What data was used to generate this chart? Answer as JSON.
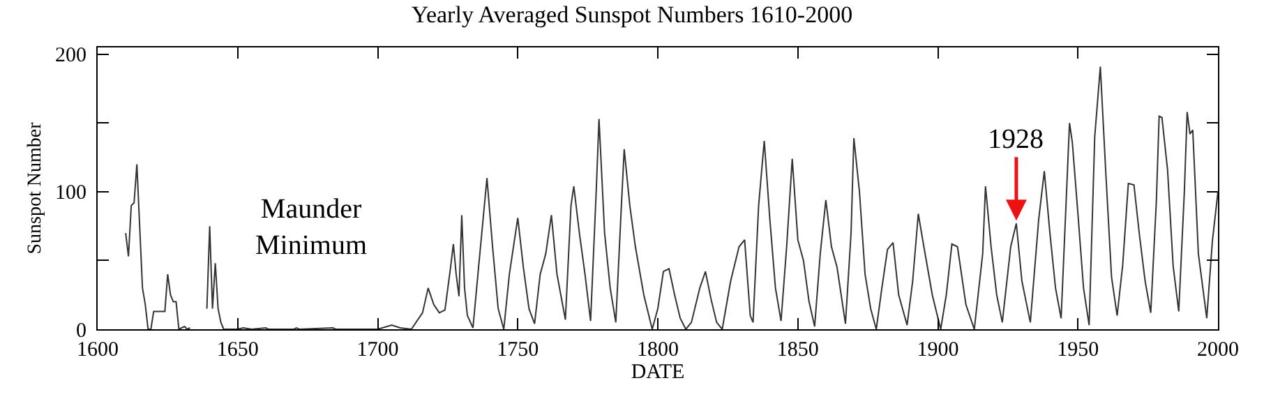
{
  "chart_data": {
    "type": "line",
    "title": "Yearly Averaged Sunspot Numbers 1610-2000",
    "xlabel": "DATE",
    "ylabel": "Sunspot Number",
    "x": [
      1610,
      1611,
      1612,
      1613,
      1614,
      1615,
      1616,
      1617,
      1618,
      1619,
      1620,
      1624,
      1625,
      1626,
      1627,
      1628,
      1629,
      1631,
      1632,
      1633,
      1635,
      1639,
      1640,
      1641,
      1642,
      1643,
      1644,
      1645,
      1650,
      1652,
      1655,
      1660,
      1661,
      1670,
      1671,
      1672,
      1684,
      1685,
      1700,
      1705,
      1708,
      1712,
      1716,
      1718,
      1720,
      1722,
      1724,
      1726,
      1727,
      1728,
      1729,
      1730,
      1731,
      1732,
      1734,
      1736,
      1739,
      1741,
      1743,
      1745,
      1747,
      1750,
      1752,
      1754,
      1756,
      1758,
      1760,
      1762,
      1764,
      1767,
      1769,
      1770,
      1772,
      1774,
      1776,
      1778,
      1779,
      1781,
      1783,
      1785,
      1787,
      1788,
      1790,
      1792,
      1795,
      1798,
      1800,
      1802,
      1804,
      1806,
      1808,
      1810,
      1812,
      1815,
      1817,
      1819,
      1821,
      1823,
      1826,
      1829,
      1831,
      1833,
      1834,
      1836,
      1838,
      1840,
      1842,
      1844,
      1846,
      1848,
      1850,
      1852,
      1854,
      1856,
      1858,
      1860,
      1862,
      1864,
      1867,
      1869,
      1870,
      1872,
      1874,
      1876,
      1878,
      1880,
      1882,
      1884,
      1886,
      1889,
      1891,
      1893,
      1895,
      1898,
      1901,
      1903,
      1905,
      1907,
      1910,
      1913,
      1916,
      1917,
      1919,
      1921,
      1923,
      1926,
      1928,
      1930,
      1933,
      1936,
      1938,
      1940,
      1942,
      1944,
      1947,
      1948,
      1950,
      1952,
      1954,
      1956,
      1958,
      1960,
      1962,
      1964,
      1966,
      1968,
      1970,
      1972,
      1974,
      1976,
      1978,
      1979,
      1980,
      1982,
      1984,
      1986,
      1988,
      1989,
      1990,
      1991,
      1993,
      1996,
      1998,
      2000
    ],
    "series": [
      {
        "color": "#333333",
        "values": [
          70,
          53,
          90,
          92,
          120,
          75,
          30,
          18,
          0,
          0,
          13,
          13,
          40,
          25,
          20,
          20,
          0,
          2,
          0,
          1,
          null,
          15,
          75,
          15,
          48,
          15,
          5,
          0,
          0,
          1,
          0,
          1,
          0,
          0,
          1,
          0,
          1,
          0,
          0,
          3,
          1,
          0,
          12,
          30,
          18,
          12,
          14,
          45,
          62,
          40,
          24,
          83,
          30,
          10,
          1,
          45,
          110,
          60,
          15,
          0,
          40,
          81,
          45,
          15,
          4,
          40,
          55,
          83,
          40,
          7,
          90,
          104,
          70,
          40,
          6,
          100,
          153,
          70,
          30,
          5,
          90,
          131,
          90,
          60,
          25,
          0,
          15,
          42,
          44,
          25,
          8,
          0,
          5,
          30,
          42,
          22,
          5,
          0,
          35,
          60,
          65,
          10,
          5,
          90,
          137,
          80,
          30,
          6,
          60,
          124,
          65,
          50,
          20,
          2,
          55,
          94,
          60,
          45,
          4,
          70,
          139,
          100,
          40,
          15,
          0,
          30,
          58,
          63,
          25,
          3,
          35,
          84,
          60,
          25,
          0,
          25,
          62,
          60,
          18,
          0,
          55,
          104,
          60,
          25,
          5,
          60,
          77,
          35,
          5,
          80,
          115,
          70,
          30,
          8,
          150,
          136,
          84,
          30,
          3,
          140,
          191,
          112,
          38,
          10,
          47,
          106,
          105,
          68,
          35,
          12,
          93,
          155,
          154,
          116,
          46,
          13,
          100,
          158,
          142,
          145,
          55,
          8,
          64,
          100
        ]
      }
    ],
    "xlim": [
      1600,
      2000
    ],
    "xticks": [
      1600,
      1650,
      1700,
      1750,
      1800,
      1850,
      1900,
      1950,
      2000
    ],
    "ylim": [
      0,
      205
    ],
    "yticks": [
      0,
      {
        "value": 50,
        "label": null
      },
      100,
      {
        "value": 150,
        "label": null
      },
      200
    ],
    "grid": false,
    "marker": "none",
    "line_style": "solid",
    "annotations": [
      "Maunder Minimum",
      {
        "text": "1928",
        "x": 1928,
        "y": 77
      }
    ]
  }
}
